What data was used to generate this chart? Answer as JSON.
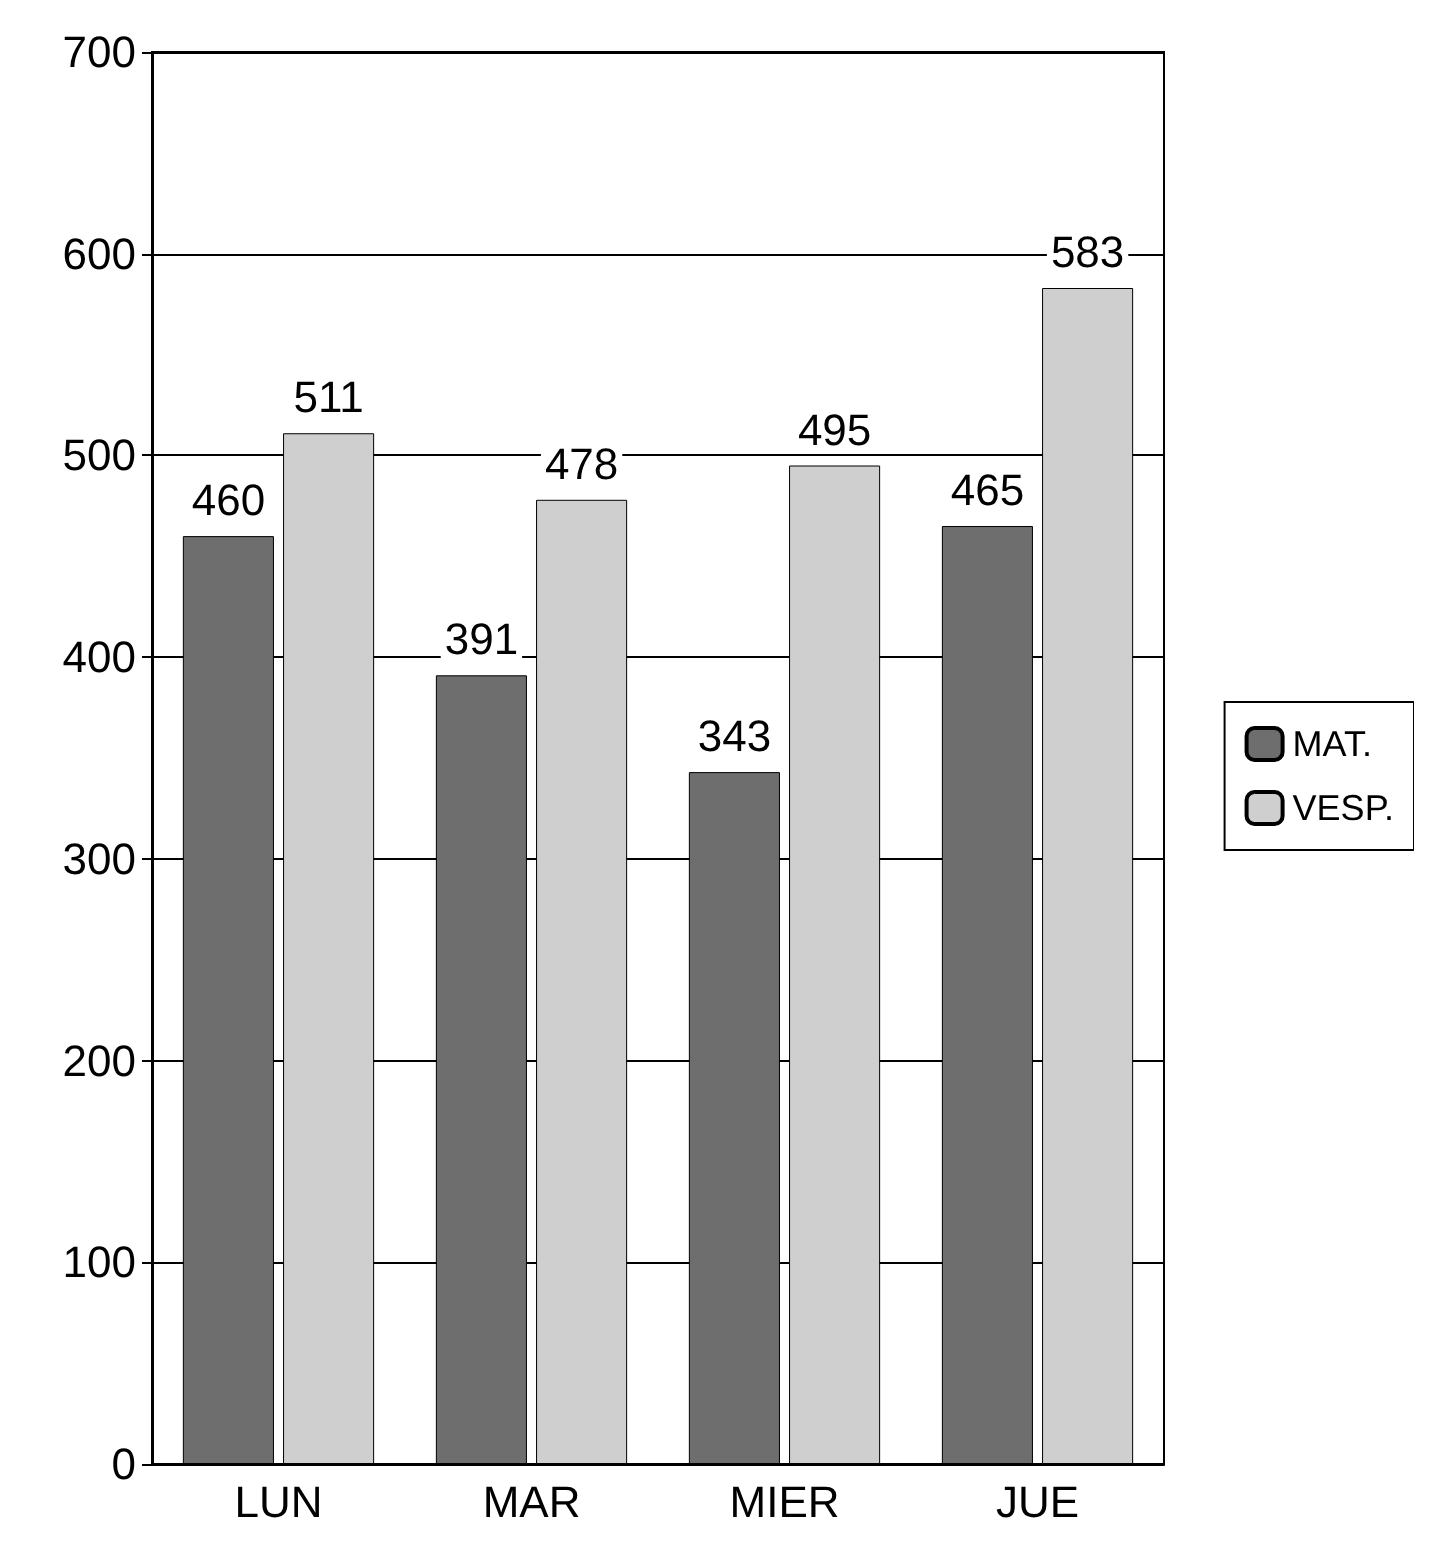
{
  "chart_data": {
    "type": "bar",
    "categories": [
      "LUN",
      "MAR",
      "MIER",
      "JUE"
    ],
    "series": [
      {
        "name": "MAT.",
        "color": "#6e6e6e",
        "values": [
          460,
          391,
          343,
          465
        ]
      },
      {
        "name": "VESP.",
        "color": "#cfcfcf",
        "values": [
          511,
          478,
          495,
          583
        ]
      }
    ],
    "ylim": [
      0,
      700
    ],
    "yticks": [
      0,
      100,
      200,
      300,
      400,
      500,
      600,
      700
    ],
    "grid": "y",
    "legend": "right",
    "data_labels": true
  }
}
